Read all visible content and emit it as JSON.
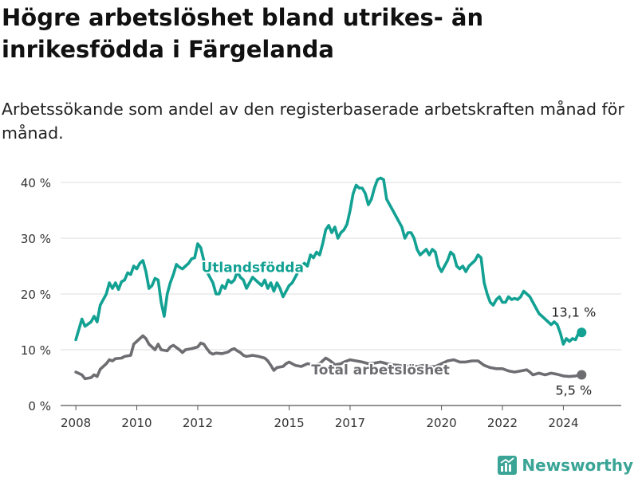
{
  "page": {
    "title": "Högre arbetslöshet bland utrikes- än inrikesfödda i Färgelanda",
    "subtitle": "Arbetssökande som andel av den registerbaserade arbetskraften månad för månad."
  },
  "brand": {
    "name": "Newsworthy",
    "icon": "newsworthy-logo-icon",
    "color": "#3aa596"
  },
  "chart_data": {
    "type": "line",
    "title": "",
    "xlabel": "",
    "ylabel": "",
    "ylim": [
      0,
      40
    ],
    "y_ticks": [
      0,
      10,
      20,
      30,
      40
    ],
    "y_tick_labels": [
      "0 %",
      "10 %",
      "20 %",
      "30 %",
      "40 %"
    ],
    "xlim": [
      2007.5,
      2025.9
    ],
    "x_ticks": [
      2008,
      2010,
      2012,
      2015,
      2017,
      2020,
      2022,
      2024
    ],
    "x_tick_labels": [
      "2008",
      "2010",
      "2012",
      "2015",
      "2017",
      "2020",
      "2022",
      "2024"
    ],
    "grid": "horizontal",
    "legend": "none (series labelled directly on lines)",
    "series": [
      {
        "name": "Utlandsfödda",
        "color": "#12a193",
        "end_label": "13,1 %",
        "points": [
          [
            2008.0,
            11.8
          ],
          [
            2008.2,
            15.5
          ],
          [
            2008.3,
            14.2
          ],
          [
            2008.5,
            15.0
          ],
          [
            2008.6,
            16.0
          ],
          [
            2008.7,
            15.0
          ],
          [
            2008.8,
            18.0
          ],
          [
            2009.0,
            20.0
          ],
          [
            2009.1,
            22.0
          ],
          [
            2009.2,
            21.0
          ],
          [
            2009.3,
            22.0
          ],
          [
            2009.4,
            20.8
          ],
          [
            2009.5,
            22.2
          ],
          [
            2009.6,
            22.5
          ],
          [
            2009.7,
            23.8
          ],
          [
            2009.8,
            23.5
          ],
          [
            2009.9,
            25.0
          ],
          [
            2010.0,
            24.5
          ],
          [
            2010.1,
            25.5
          ],
          [
            2010.2,
            26.0
          ],
          [
            2010.3,
            24.0
          ],
          [
            2010.4,
            21.0
          ],
          [
            2010.5,
            21.5
          ],
          [
            2010.6,
            22.8
          ],
          [
            2010.7,
            22.5
          ],
          [
            2010.8,
            18.5
          ],
          [
            2010.9,
            16.0
          ],
          [
            2011.0,
            20.0
          ],
          [
            2011.1,
            22.0
          ],
          [
            2011.2,
            23.5
          ],
          [
            2011.3,
            25.3
          ],
          [
            2011.4,
            24.8
          ],
          [
            2011.5,
            24.5
          ],
          [
            2011.6,
            25.0
          ],
          [
            2011.7,
            25.5
          ],
          [
            2011.8,
            26.3
          ],
          [
            2011.9,
            26.5
          ],
          [
            2012.0,
            29.0
          ],
          [
            2012.1,
            28.3
          ],
          [
            2012.2,
            26.0
          ],
          [
            2012.3,
            24.0
          ],
          [
            2012.4,
            23.0
          ],
          [
            2012.5,
            22.0
          ],
          [
            2012.6,
            20.0
          ],
          [
            2012.7,
            20.0
          ],
          [
            2012.8,
            21.5
          ],
          [
            2012.9,
            21.0
          ],
          [
            2013.0,
            22.5
          ],
          [
            2013.1,
            22.0
          ],
          [
            2013.2,
            22.5
          ],
          [
            2013.3,
            24.0
          ],
          [
            2013.4,
            23.0
          ],
          [
            2013.5,
            22.5
          ],
          [
            2013.6,
            21.0
          ],
          [
            2013.7,
            22.0
          ],
          [
            2013.8,
            23.0
          ],
          [
            2013.9,
            22.5
          ],
          [
            2014.0,
            22.0
          ],
          [
            2014.1,
            21.5
          ],
          [
            2014.2,
            22.5
          ],
          [
            2014.3,
            21.0
          ],
          [
            2014.4,
            22.0
          ],
          [
            2014.5,
            20.5
          ],
          [
            2014.6,
            22.0
          ],
          [
            2014.7,
            21.0
          ],
          [
            2014.8,
            19.5
          ],
          [
            2014.9,
            20.5
          ],
          [
            2015.0,
            21.5
          ],
          [
            2015.1,
            22.0
          ],
          [
            2015.2,
            23.0
          ],
          [
            2015.3,
            24.0
          ],
          [
            2015.4,
            25.0
          ],
          [
            2015.5,
            25.5
          ],
          [
            2015.6,
            25.0
          ],
          [
            2015.7,
            27.0
          ],
          [
            2015.8,
            26.5
          ],
          [
            2015.9,
            27.5
          ],
          [
            2016.0,
            27.0
          ],
          [
            2016.1,
            29.0
          ],
          [
            2016.2,
            31.5
          ],
          [
            2016.3,
            32.3
          ],
          [
            2016.4,
            31.0
          ],
          [
            2016.5,
            32.0
          ],
          [
            2016.6,
            30.0
          ],
          [
            2016.7,
            31.0
          ],
          [
            2016.8,
            31.5
          ],
          [
            2016.9,
            32.5
          ],
          [
            2017.0,
            35.0
          ],
          [
            2017.1,
            38.0
          ],
          [
            2017.2,
            39.5
          ],
          [
            2017.3,
            39.0
          ],
          [
            2017.4,
            39.0
          ],
          [
            2017.5,
            38.0
          ],
          [
            2017.6,
            36.0
          ],
          [
            2017.7,
            37.0
          ],
          [
            2017.8,
            39.0
          ],
          [
            2017.9,
            40.5
          ],
          [
            2018.0,
            40.8
          ],
          [
            2018.1,
            40.5
          ],
          [
            2018.2,
            37.0
          ],
          [
            2018.3,
            36.0
          ],
          [
            2018.4,
            35.0
          ],
          [
            2018.5,
            34.0
          ],
          [
            2018.6,
            33.0
          ],
          [
            2018.7,
            32.0
          ],
          [
            2018.8,
            30.0
          ],
          [
            2018.9,
            31.0
          ],
          [
            2019.0,
            31.0
          ],
          [
            2019.1,
            30.0
          ],
          [
            2019.2,
            28.0
          ],
          [
            2019.3,
            27.0
          ],
          [
            2019.4,
            27.5
          ],
          [
            2019.5,
            28.0
          ],
          [
            2019.6,
            27.0
          ],
          [
            2019.7,
            28.0
          ],
          [
            2019.8,
            27.5
          ],
          [
            2019.9,
            25.0
          ],
          [
            2020.0,
            24.0
          ],
          [
            2020.1,
            25.0
          ],
          [
            2020.2,
            26.0
          ],
          [
            2020.3,
            27.5
          ],
          [
            2020.4,
            27.0
          ],
          [
            2020.5,
            25.0
          ],
          [
            2020.6,
            24.5
          ],
          [
            2020.7,
            25.0
          ],
          [
            2020.8,
            24.0
          ],
          [
            2020.9,
            25.0
          ],
          [
            2021.0,
            25.5
          ],
          [
            2021.1,
            26.0
          ],
          [
            2021.2,
            27.0
          ],
          [
            2021.3,
            26.5
          ],
          [
            2021.4,
            22.0
          ],
          [
            2021.5,
            20.0
          ],
          [
            2021.6,
            18.5
          ],
          [
            2021.7,
            18.0
          ],
          [
            2021.8,
            19.0
          ],
          [
            2021.9,
            19.5
          ],
          [
            2022.0,
            18.5
          ],
          [
            2022.1,
            18.5
          ],
          [
            2022.2,
            19.5
          ],
          [
            2022.3,
            19.0
          ],
          [
            2022.4,
            19.2
          ],
          [
            2022.5,
            19.0
          ],
          [
            2022.6,
            19.5
          ],
          [
            2022.7,
            20.5
          ],
          [
            2022.8,
            20.0
          ],
          [
            2022.9,
            19.5
          ],
          [
            2023.0,
            18.5
          ],
          [
            2023.1,
            17.5
          ],
          [
            2023.2,
            16.5
          ],
          [
            2023.3,
            16.0
          ],
          [
            2023.4,
            15.5
          ],
          [
            2023.5,
            15.0
          ],
          [
            2023.6,
            14.5
          ],
          [
            2023.7,
            15.0
          ],
          [
            2023.8,
            14.5
          ],
          [
            2023.9,
            13.0
          ],
          [
            2024.0,
            11.0
          ],
          [
            2024.1,
            12.0
          ],
          [
            2024.2,
            11.5
          ],
          [
            2024.3,
            12.0
          ],
          [
            2024.4,
            11.8
          ],
          [
            2024.5,
            13.0
          ],
          [
            2024.6,
            13.1
          ]
        ]
      },
      {
        "name": "Total arbetslöshet",
        "color": "#6e6d72",
        "end_label": "5,5 %",
        "points": [
          [
            2008.0,
            6.0
          ],
          [
            2008.2,
            5.5
          ],
          [
            2008.3,
            4.8
          ],
          [
            2008.5,
            5.0
          ],
          [
            2008.6,
            5.5
          ],
          [
            2008.7,
            5.2
          ],
          [
            2008.8,
            6.5
          ],
          [
            2009.0,
            7.5
          ],
          [
            2009.1,
            8.2
          ],
          [
            2009.2,
            8.0
          ],
          [
            2009.3,
            8.4
          ],
          [
            2009.5,
            8.5
          ],
          [
            2009.6,
            8.8
          ],
          [
            2009.8,
            9.0
          ],
          [
            2009.9,
            11.0
          ],
          [
            2010.0,
            11.5
          ],
          [
            2010.1,
            12.0
          ],
          [
            2010.2,
            12.5
          ],
          [
            2010.3,
            12.0
          ],
          [
            2010.4,
            11.0
          ],
          [
            2010.5,
            10.5
          ],
          [
            2010.6,
            10.0
          ],
          [
            2010.7,
            11.0
          ],
          [
            2010.8,
            10.0
          ],
          [
            2011.0,
            9.8
          ],
          [
            2011.1,
            10.5
          ],
          [
            2011.2,
            10.8
          ],
          [
            2011.4,
            10.0
          ],
          [
            2011.5,
            9.5
          ],
          [
            2011.6,
            10.0
          ],
          [
            2011.8,
            10.2
          ],
          [
            2012.0,
            10.5
          ],
          [
            2012.1,
            11.2
          ],
          [
            2012.2,
            11.0
          ],
          [
            2012.3,
            10.2
          ],
          [
            2012.4,
            9.5
          ],
          [
            2012.5,
            9.2
          ],
          [
            2012.6,
            9.4
          ],
          [
            2012.8,
            9.3
          ],
          [
            2013.0,
            9.6
          ],
          [
            2013.1,
            10.0
          ],
          [
            2013.2,
            10.2
          ],
          [
            2013.3,
            9.8
          ],
          [
            2013.4,
            9.5
          ],
          [
            2013.5,
            9.0
          ],
          [
            2013.6,
            8.8
          ],
          [
            2013.8,
            9.0
          ],
          [
            2014.0,
            8.8
          ],
          [
            2014.2,
            8.5
          ],
          [
            2014.3,
            8.0
          ],
          [
            2014.4,
            7.2
          ],
          [
            2014.5,
            6.3
          ],
          [
            2014.6,
            6.8
          ],
          [
            2014.8,
            7.0
          ],
          [
            2014.9,
            7.5
          ],
          [
            2015.0,
            7.8
          ],
          [
            2015.2,
            7.2
          ],
          [
            2015.4,
            7.0
          ],
          [
            2015.6,
            7.5
          ],
          [
            2015.8,
            7.3
          ],
          [
            2016.0,
            7.5
          ],
          [
            2016.1,
            8.0
          ],
          [
            2016.2,
            8.5
          ],
          [
            2016.3,
            8.2
          ],
          [
            2016.4,
            7.8
          ],
          [
            2016.5,
            7.3
          ],
          [
            2016.7,
            7.5
          ],
          [
            2016.8,
            7.8
          ],
          [
            2017.0,
            8.2
          ],
          [
            2017.2,
            8.0
          ],
          [
            2017.4,
            7.8
          ],
          [
            2017.6,
            7.5
          ],
          [
            2017.8,
            7.6
          ],
          [
            2018.0,
            7.8
          ],
          [
            2018.2,
            7.5
          ],
          [
            2018.4,
            7.3
          ],
          [
            2018.6,
            7.2
          ],
          [
            2018.8,
            7.0
          ],
          [
            2019.0,
            7.2
          ],
          [
            2019.2,
            7.0
          ],
          [
            2019.4,
            7.2
          ],
          [
            2019.6,
            7.0
          ],
          [
            2019.8,
            7.0
          ],
          [
            2020.0,
            7.5
          ],
          [
            2020.2,
            8.0
          ],
          [
            2020.4,
            8.2
          ],
          [
            2020.6,
            7.8
          ],
          [
            2020.8,
            7.8
          ],
          [
            2021.0,
            8.0
          ],
          [
            2021.2,
            8.0
          ],
          [
            2021.4,
            7.2
          ],
          [
            2021.6,
            6.8
          ],
          [
            2021.8,
            6.6
          ],
          [
            2022.0,
            6.6
          ],
          [
            2022.2,
            6.2
          ],
          [
            2022.4,
            6.0
          ],
          [
            2022.6,
            6.2
          ],
          [
            2022.8,
            6.4
          ],
          [
            2022.9,
            6.0
          ],
          [
            2023.0,
            5.5
          ],
          [
            2023.2,
            5.8
          ],
          [
            2023.4,
            5.5
          ],
          [
            2023.6,
            5.8
          ],
          [
            2023.8,
            5.6
          ],
          [
            2024.0,
            5.3
          ],
          [
            2024.2,
            5.2
          ],
          [
            2024.4,
            5.3
          ],
          [
            2024.6,
            5.5
          ]
        ]
      }
    ],
    "annotations": [
      {
        "text": "Utlandsfödda",
        "series": "Utlandsfödda",
        "x": 2013.8,
        "y": 24.8
      },
      {
        "text": "Total arbetslöshet",
        "series": "Total arbetslöshet",
        "x": 2018.0,
        "y": 6.4
      }
    ]
  }
}
